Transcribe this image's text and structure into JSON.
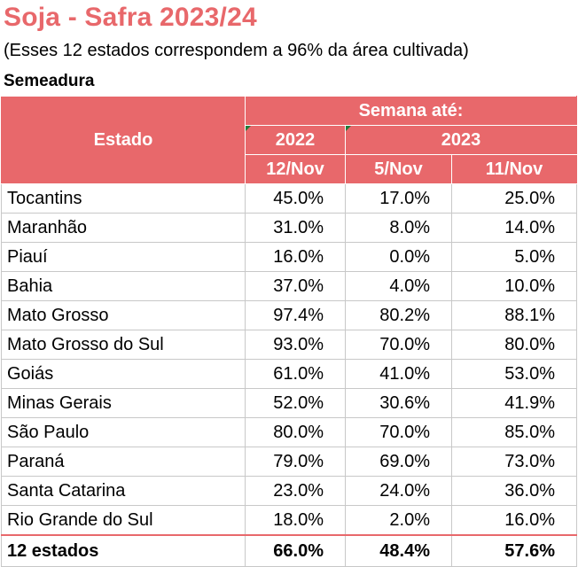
{
  "title": "Soja - Safra 2023/24",
  "subtitle": "(Esses 12 estados correspondem a 96% da área cultivada)",
  "section_label": "Semeadura",
  "colors": {
    "header_bg": "#e8686b",
    "title": "#e8686b",
    "header_text": "#ffffff"
  },
  "table": {
    "header": {
      "estado": "Estado",
      "semana": "Semana até:",
      "year_2022": "2022",
      "year_2023": "2023",
      "col_2022_nov12": "12/Nov",
      "col_2023_nov5": "5/Nov",
      "col_2023_nov11": "11/Nov"
    },
    "rows": [
      {
        "estado": "Tocantins",
        "v2022_12nov": "45.0%",
        "v2023_5nov": "17.0%",
        "v2023_11nov": "25.0%"
      },
      {
        "estado": "Maranhão",
        "v2022_12nov": "31.0%",
        "v2023_5nov": "8.0%",
        "v2023_11nov": "14.0%"
      },
      {
        "estado": "Piauí",
        "v2022_12nov": "16.0%",
        "v2023_5nov": "0.0%",
        "v2023_11nov": "5.0%"
      },
      {
        "estado": "Bahia",
        "v2022_12nov": "37.0%",
        "v2023_5nov": "4.0%",
        "v2023_11nov": "10.0%"
      },
      {
        "estado": "Mato Grosso",
        "v2022_12nov": "97.4%",
        "v2023_5nov": "80.2%",
        "v2023_11nov": "88.1%"
      },
      {
        "estado": "Mato Grosso do Sul",
        "v2022_12nov": "93.0%",
        "v2023_5nov": "70.0%",
        "v2023_11nov": "80.0%"
      },
      {
        "estado": "Goiás",
        "v2022_12nov": "61.0%",
        "v2023_5nov": "41.0%",
        "v2023_11nov": "53.0%"
      },
      {
        "estado": "Minas Gerais",
        "v2022_12nov": "52.0%",
        "v2023_5nov": "30.6%",
        "v2023_11nov": "41.9%"
      },
      {
        "estado": "São Paulo",
        "v2022_12nov": "80.0%",
        "v2023_5nov": "70.0%",
        "v2023_11nov": "85.0%"
      },
      {
        "estado": "Paraná",
        "v2022_12nov": "79.0%",
        "v2023_5nov": "69.0%",
        "v2023_11nov": "73.0%"
      },
      {
        "estado": "Santa Catarina",
        "v2022_12nov": "23.0%",
        "v2023_5nov": "24.0%",
        "v2023_11nov": "36.0%"
      },
      {
        "estado": "Rio Grande do Sul",
        "v2022_12nov": "18.0%",
        "v2023_5nov": "2.0%",
        "v2023_11nov": "16.0%"
      }
    ],
    "total": {
      "estado": "12 estados",
      "v2022_12nov": "66.0%",
      "v2023_5nov": "48.4%",
      "v2023_11nov": "57.6%"
    }
  }
}
